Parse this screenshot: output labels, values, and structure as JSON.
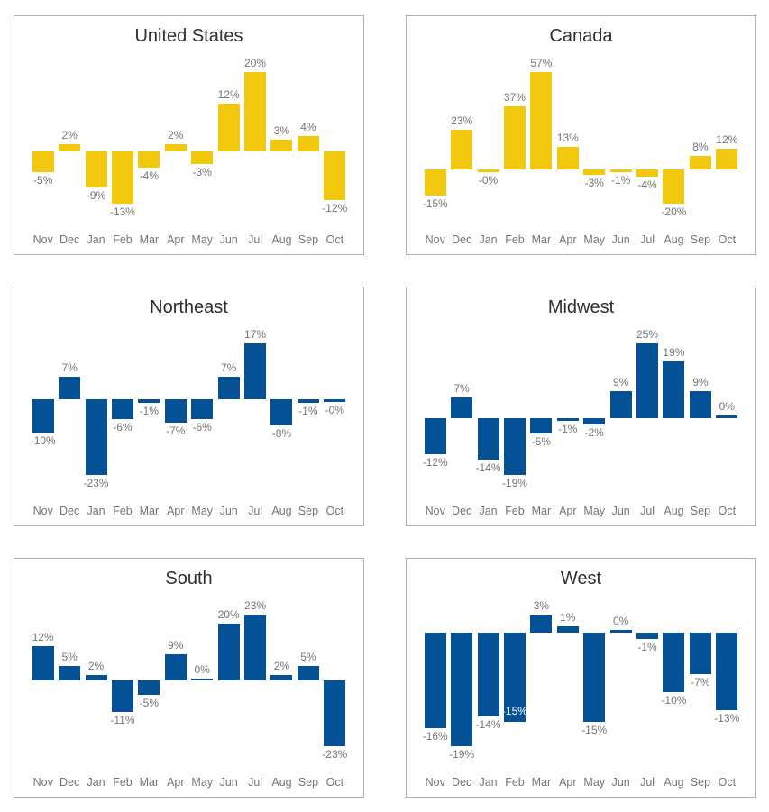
{
  "page": {
    "background": "#ffffff",
    "layout": "2x3 grid of small-multiple bar charts"
  },
  "palette": {
    "yellow": "#F2C80F",
    "blue": "#045196",
    "label_gray": "#757575",
    "title_color": "#2F2F2F",
    "card_border": "#B2B2B2",
    "inside_label_color": "#FFFFFF"
  },
  "chart_data": [
    {
      "type": "bar",
      "title": "United States",
      "color": "#F2C80F",
      "categories": [
        "Nov",
        "Dec",
        "Jan",
        "Feb",
        "Mar",
        "Apr",
        "May",
        "Jun",
        "Jul",
        "Aug",
        "Sep",
        "Oct"
      ],
      "values": [
        -5,
        2,
        -9,
        -13,
        -4,
        2,
        -3,
        12,
        20,
        3,
        4,
        -12
      ],
      "labels": [
        "-5%",
        "2%",
        "-9%",
        "-13%",
        "-4%",
        "2%",
        "-3%",
        "12%",
        "20%",
        "3%",
        "4%",
        "-12%"
      ],
      "inside_label_indices": [],
      "xlabel": "",
      "ylabel": "",
      "legend": false,
      "grid": false,
      "data_labels": true
    },
    {
      "type": "bar",
      "title": "Canada",
      "color": "#F2C80F",
      "categories": [
        "Nov",
        "Dec",
        "Jan",
        "Feb",
        "Mar",
        "Apr",
        "May",
        "Jun",
        "Jul",
        "Aug",
        "Sep",
        "Oct"
      ],
      "values": [
        -15,
        23,
        0,
        37,
        57,
        13,
        -3,
        -1,
        -4,
        -20,
        8,
        12
      ],
      "labels": [
        "-15%",
        "23%",
        "-0%",
        "37%",
        "57%",
        "13%",
        "-3%",
        "-1%",
        "-4%",
        "-20%",
        "8%",
        "12%"
      ],
      "inside_label_indices": [],
      "xlabel": "",
      "ylabel": "",
      "legend": false,
      "grid": false,
      "data_labels": true
    },
    {
      "type": "bar",
      "title": "Northeast",
      "color": "#045196",
      "categories": [
        "Nov",
        "Dec",
        "Jan",
        "Feb",
        "Mar",
        "Apr",
        "May",
        "Jun",
        "Jul",
        "Aug",
        "Sep",
        "Oct"
      ],
      "values": [
        -10,
        7,
        -23,
        -6,
        -1,
        -7,
        -6,
        7,
        17,
        -8,
        -1,
        0
      ],
      "labels": [
        "-10%",
        "7%",
        "-23%",
        "-6%",
        "-1%",
        "-7%",
        "-6%",
        "7%",
        "17%",
        "-8%",
        "-1%",
        "-0%"
      ],
      "inside_label_indices": [],
      "xlabel": "",
      "ylabel": "",
      "legend": false,
      "grid": false,
      "data_labels": true
    },
    {
      "type": "bar",
      "title": "Midwest",
      "color": "#045196",
      "categories": [
        "Nov",
        "Dec",
        "Jan",
        "Feb",
        "Mar",
        "Apr",
        "May",
        "Jun",
        "Jul",
        "Aug",
        "Sep",
        "Oct"
      ],
      "values": [
        -12,
        7,
        -14,
        -19,
        -5,
        -1,
        -2,
        9,
        25,
        19,
        9,
        0
      ],
      "labels": [
        "-12%",
        "7%",
        "-14%",
        "-19%",
        "-5%",
        "-1%",
        "-2%",
        "9%",
        "25%",
        "19%",
        "9%",
        "0%"
      ],
      "inside_label_indices": [],
      "xlabel": "",
      "ylabel": "",
      "legend": false,
      "grid": false,
      "data_labels": true
    },
    {
      "type": "bar",
      "title": "South",
      "color": "#045196",
      "categories": [
        "Nov",
        "Dec",
        "Jan",
        "Feb",
        "Mar",
        "Apr",
        "May",
        "Jun",
        "Jul",
        "Aug",
        "Sep",
        "Oct"
      ],
      "values": [
        12,
        5,
        2,
        -11,
        -5,
        9,
        0,
        20,
        23,
        2,
        5,
        -23
      ],
      "labels": [
        "12%",
        "5%",
        "2%",
        "-11%",
        "-5%",
        "9%",
        "0%",
        "20%",
        "23%",
        "2%",
        "5%",
        "-23%"
      ],
      "inside_label_indices": [],
      "xlabel": "",
      "ylabel": "",
      "legend": false,
      "grid": false,
      "data_labels": true
    },
    {
      "type": "bar",
      "title": "West",
      "color": "#045196",
      "categories": [
        "Nov",
        "Dec",
        "Jan",
        "Feb",
        "Mar",
        "Apr",
        "May",
        "Jun",
        "Jul",
        "Aug",
        "Sep",
        "Oct"
      ],
      "values": [
        -16,
        -19,
        -14,
        -15,
        3,
        1,
        -15,
        0,
        -1,
        -10,
        -7,
        -13
      ],
      "labels": [
        "-16%",
        "-19%",
        "-14%",
        "-15%",
        "3%",
        "1%",
        "-15%",
        "0%",
        "-1%",
        "-10%",
        "-7%",
        "-13%"
      ],
      "inside_label_indices": [
        3
      ],
      "xlabel": "",
      "ylabel": "",
      "legend": false,
      "grid": false,
      "data_labels": true
    }
  ]
}
